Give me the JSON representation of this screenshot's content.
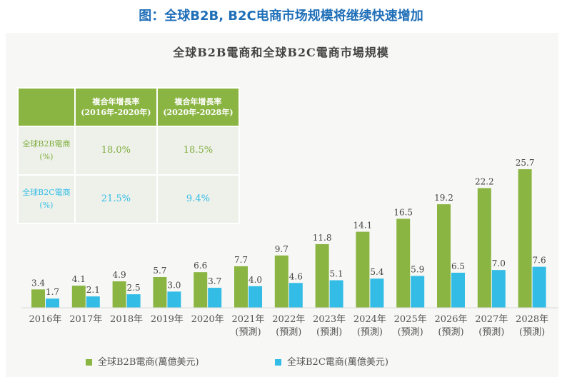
{
  "header": {
    "banner_title": "图：全球B2B, B2C电商市场规模将继续快速增加"
  },
  "table": {
    "headers": [
      "複合年增長率\n(2016年-2020年)",
      "複合年增長率\n(2020年-2028年)"
    ],
    "rows": [
      {
        "label": "全球B2B電商\n(%)",
        "values": [
          "18.0%",
          "18.5%"
        ]
      },
      {
        "label": "全球B2C電商\n(%)",
        "values": [
          "21.5%",
          "9.4%"
        ]
      }
    ]
  },
  "colors": {
    "b2b": "#8bb543",
    "b2c": "#33bde6",
    "banner": "#1f6fb8"
  },
  "chart_data": {
    "type": "bar",
    "title": "全球B2B電商和全球B2C電商市場規模",
    "categories": [
      "2016年",
      "2017年",
      "2018年",
      "2019年",
      "2020年",
      "2021年\n(預測)",
      "2022年\n(預測)",
      "2023年\n(預測)",
      "2024年\n(預測)",
      "2025年\n(預測)",
      "2026年\n(預測)",
      "2027年\n(預測)",
      "2028年\n(預測)"
    ],
    "series": [
      {
        "name": "全球B2B電商(萬億美元)",
        "color": "#8bb543",
        "values": [
          3.4,
          4.1,
          4.9,
          5.7,
          6.6,
          7.7,
          9.7,
          11.8,
          14.1,
          16.5,
          19.2,
          22.2,
          25.7
        ]
      },
      {
        "name": "全球B2C電商(萬億美元)",
        "color": "#33bde6",
        "values": [
          1.7,
          2.1,
          2.5,
          3.0,
          3.7,
          4.0,
          4.6,
          5.1,
          5.4,
          5.9,
          6.5,
          7.0,
          7.6
        ]
      }
    ],
    "xlabel": "",
    "ylabel": "",
    "ylim": [
      0,
      25.7
    ],
    "grid": false,
    "legend": "bottom"
  }
}
